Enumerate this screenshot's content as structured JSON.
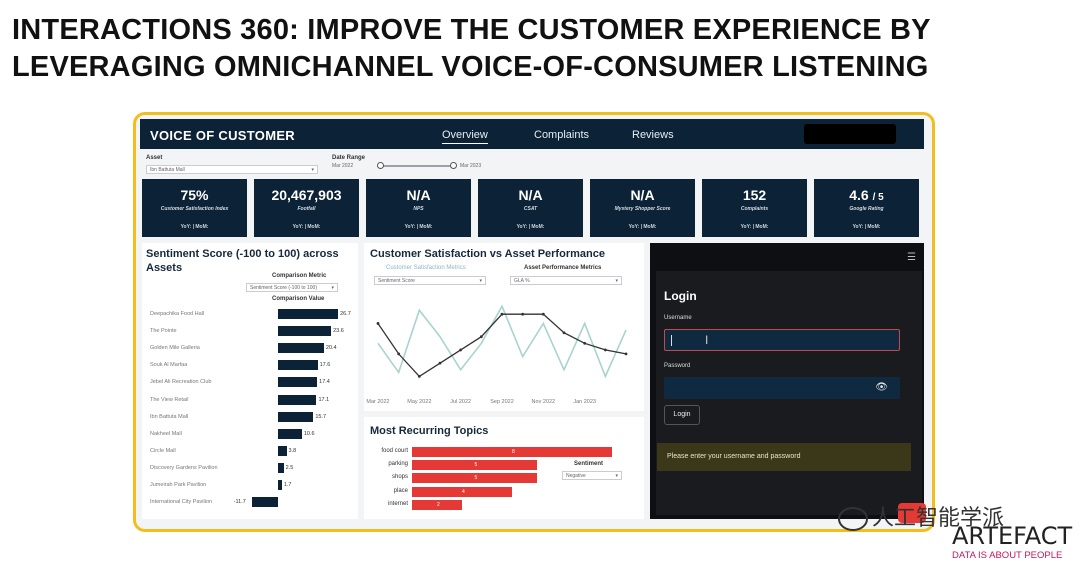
{
  "slide": {
    "title_line1": "INTERACTIONS 360: IMPROVE THE CUSTOMER EXPERIENCE BY",
    "title_line2": "LEVERAGING OMNICHANNEL VOICE-OF-CONSUMER LISTENING"
  },
  "dashboard": {
    "brand": "VOICE OF CUSTOMER",
    "tabs": [
      "Overview",
      "Complaints",
      "Reviews"
    ],
    "active_tab": "Overview",
    "filters": {
      "asset_label": "Asset",
      "asset_value": "Ibn Battuta Mall",
      "date_label": "Date Range",
      "date_start": "Mar 2022",
      "date_end": "Mar 2023"
    },
    "kpis": [
      {
        "value": "75%",
        "suffix": "",
        "label": "Customer Satisfaction Index",
        "footer": "YoY: | MoM:"
      },
      {
        "value": "20,467,903",
        "suffix": "",
        "label": "Footfall",
        "footer": "YoY: | MoM:"
      },
      {
        "value": "N/A",
        "suffix": "",
        "label": "NPS",
        "footer": "YoY: | MoM:"
      },
      {
        "value": "N/A",
        "suffix": "",
        "label": "CSAT",
        "footer": "YoY: | MoM:"
      },
      {
        "value": "N/A",
        "suffix": "",
        "label": "Mystery Shopper Score",
        "footer": "YoY: | MoM:"
      },
      {
        "value": "152",
        "suffix": "",
        "label": "Complaints",
        "footer": "YoY: | MoM:"
      },
      {
        "value": "4.6",
        "suffix": "/ 5",
        "label": "Google Rating",
        "footer": "YoY: | MoM:"
      }
    ],
    "sentiment": {
      "title_line1": "Sentiment Score (-100 to 100) across",
      "title_line2": "Assets",
      "comparison_metric_label": "Comparison Metric",
      "comparison_metric_value": "Sentiment Score (-100 to 100)",
      "comparison_value_label": "Comparison Value"
    },
    "satisfaction": {
      "title": "Customer Satisfaction vs Asset Performance",
      "metric_label": "Customer Satisfaction Metrics",
      "metric_value": "Sentiment Score",
      "perf_label": "Asset Performance Metrics",
      "perf_value": "GLA %"
    },
    "topics": {
      "title": "Most Recurring Topics",
      "sentiment_label": "Sentiment",
      "sentiment_value": "Negative"
    },
    "login": {
      "title": "Login",
      "username_label": "Username",
      "username_value": "",
      "password_label": "Password",
      "password_value": "",
      "button": "Login",
      "message": "Please enter your username and password",
      "menu_icon": "hamburger-icon",
      "eye_icon": "eye-icon"
    }
  },
  "chart_data": [
    {
      "type": "bar",
      "orientation": "horizontal",
      "title": "Sentiment Score (-100 to 100) across Assets",
      "categories": [
        "Deepachika Food Hall",
        "The Pointe",
        "Golden Mile Galleria",
        "Souk Al Marfaa",
        "Jebel Ali Recreation Club",
        "The View Retail",
        "Ibn Battuta Mall",
        "Nakheel Mall",
        "Circle Mall",
        "Discovery Gardens Pavilion",
        "Jumeirah Park Pavilion",
        "International City Pavilion"
      ],
      "values": [
        26.7,
        23.6,
        20.4,
        17.6,
        17.4,
        17.1,
        15.7,
        10.6,
        3.8,
        2.5,
        1.7,
        -11.7
      ],
      "labels": [
        "26.7",
        "23.6",
        "20.4",
        "17.6",
        "17.4",
        "17.1",
        "15.7",
        "10.6",
        "3.8",
        "2.5",
        "1.7",
        "-11.7"
      ],
      "xlim": [
        -15,
        30
      ]
    },
    {
      "type": "line",
      "title": "Customer Satisfaction vs Asset Performance",
      "x": [
        "Mar 2022",
        "Apr 2022",
        "May 2022",
        "Jun 2022",
        "Jul 2022",
        "Aug 2022",
        "Sep 2022",
        "Oct 2022",
        "Nov 2022",
        "Dec 2022",
        "Jan 2023",
        "Feb 2023",
        "Mar 2023"
      ],
      "xtick_labels": [
        "Mar 2022",
        "May 2022",
        "Jul 2022",
        "Sep 2022",
        "Nov 2022",
        "Jan 2023"
      ],
      "series": [
        {
          "name": "Customer Satisfaction Metrics",
          "color": "#a9d3cf",
          "values": [
            30,
            8,
            55,
            35,
            10,
            30,
            58,
            20,
            45,
            10,
            45,
            5,
            40
          ]
        },
        {
          "name": "Asset Performance Metrics",
          "color": "#333333",
          "values": [
            45,
            22,
            5,
            15,
            25,
            35,
            52,
            52,
            52,
            38,
            30,
            25,
            22
          ]
        }
      ],
      "ylim": [
        0,
        65
      ]
    },
    {
      "type": "bar",
      "orientation": "horizontal",
      "title": "Most Recurring Topics",
      "categories": [
        "food court",
        "parking",
        "shops",
        "place",
        "internet"
      ],
      "values": [
        8,
        5,
        5,
        4,
        2
      ],
      "labels": [
        "8",
        "5",
        "5",
        "4",
        "2"
      ],
      "color": "#e53935",
      "xlim": [
        0,
        9
      ]
    }
  ],
  "watermark": {
    "text": "人工智能学派",
    "brand": "ARTEFACT",
    "tagline": "DATA IS ABOUT PEOPLE"
  }
}
